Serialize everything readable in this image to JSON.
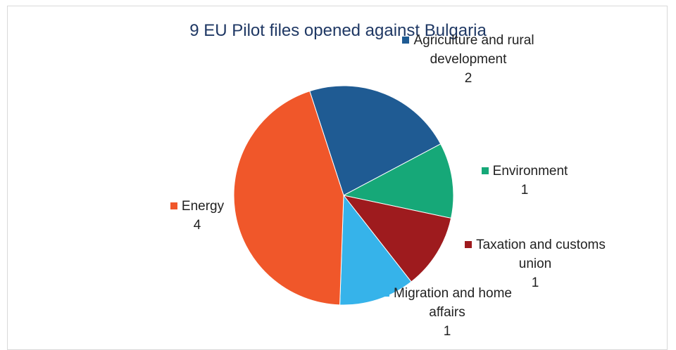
{
  "chart_data": {
    "type": "pie",
    "title": "9 EU Pilot files opened against Bulgaria",
    "categories": [
      "Agriculture and rural development",
      "Environment",
      "Taxation and customs union",
      "Migration and home affairs",
      "Energy"
    ],
    "values": [
      2,
      1,
      1,
      1,
      4
    ],
    "colors": [
      "#1f5b93",
      "#16a878",
      "#9e1b1e",
      "#36b3ea",
      "#f0572a"
    ]
  }
}
